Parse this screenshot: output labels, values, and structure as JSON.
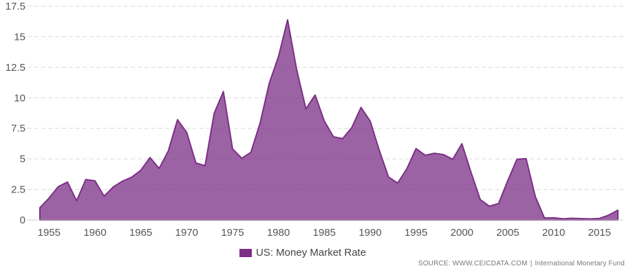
{
  "chart_data": {
    "type": "area",
    "x": [
      1954,
      1955,
      1956,
      1957,
      1958,
      1959,
      1960,
      1961,
      1962,
      1963,
      1964,
      1965,
      1966,
      1967,
      1968,
      1969,
      1970,
      1971,
      1972,
      1973,
      1974,
      1975,
      1976,
      1977,
      1978,
      1979,
      1980,
      1981,
      1982,
      1983,
      1984,
      1985,
      1986,
      1987,
      1988,
      1989,
      1990,
      1991,
      1992,
      1993,
      1994,
      1995,
      1996,
      1997,
      1998,
      1999,
      2000,
      2001,
      2002,
      2003,
      2004,
      2005,
      2006,
      2007,
      2008,
      2009,
      2010,
      2011,
      2012,
      2013,
      2014,
      2015,
      2016,
      2017
    ],
    "series": [
      {
        "name": "US: Money Market Rate",
        "color": "#7b2f85",
        "values": [
          1.0,
          1.8,
          2.73,
          3.11,
          1.57,
          3.31,
          3.21,
          1.95,
          2.71,
          3.18,
          3.5,
          4.07,
          5.11,
          4.22,
          5.66,
          8.21,
          7.17,
          4.67,
          4.44,
          8.74,
          10.51,
          5.82,
          5.05,
          5.54,
          7.93,
          11.19,
          13.36,
          16.38,
          12.26,
          9.09,
          10.23,
          8.1,
          6.81,
          6.66,
          7.57,
          9.21,
          8.1,
          5.69,
          3.52,
          3.02,
          4.2,
          5.84,
          5.3,
          5.46,
          5.35,
          4.97,
          6.24,
          3.89,
          1.67,
          1.13,
          1.35,
          3.22,
          4.97,
          5.02,
          1.92,
          0.16,
          0.18,
          0.1,
          0.14,
          0.11,
          0.09,
          0.13,
          0.4,
          0.8
        ]
      }
    ],
    "ylim": [
      0,
      17.5
    ],
    "yticks": [
      "0",
      "2.5",
      "5",
      "7.5",
      "10",
      "12.5",
      "15",
      "17.5"
    ],
    "ytick_values": [
      0,
      2.5,
      5,
      7.5,
      10,
      12.5,
      15,
      17.5
    ],
    "xticks": [
      "1955",
      "1960",
      "1965",
      "1970",
      "1975",
      "1980",
      "1985",
      "1990",
      "1995",
      "2000",
      "2005",
      "2010",
      "2015"
    ],
    "xtick_values": [
      1955,
      1960,
      1965,
      1970,
      1975,
      1980,
      1985,
      1990,
      1995,
      2000,
      2005,
      2010,
      2015
    ],
    "xlim": [
      1954,
      2017
    ],
    "grid": "horizontal dashed",
    "legend": "bottom-center"
  },
  "legend": {
    "label": "US: Money Market Rate"
  },
  "source": {
    "text": "SOURCE: WWW.CEICDATA.COM",
    "separator": "|",
    "provider": "International Monetary Fund"
  },
  "colors": {
    "fill": "#7b2f85",
    "grid": "#d9d9d9",
    "axis_text": "#555555"
  }
}
